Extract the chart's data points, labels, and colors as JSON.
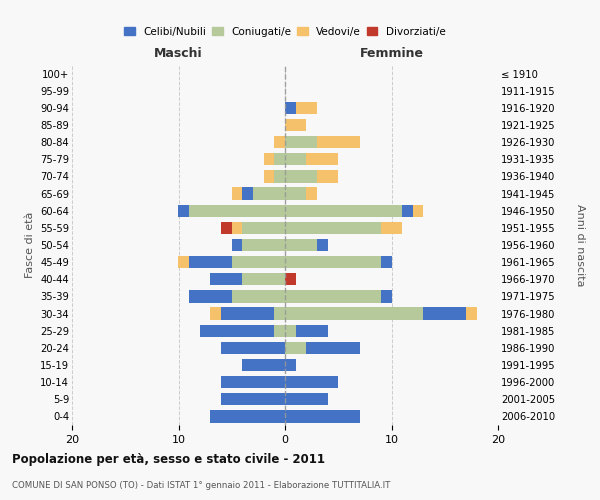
{
  "age_groups": [
    "0-4",
    "5-9",
    "10-14",
    "15-19",
    "20-24",
    "25-29",
    "30-34",
    "35-39",
    "40-44",
    "45-49",
    "50-54",
    "55-59",
    "60-64",
    "65-69",
    "70-74",
    "75-79",
    "80-84",
    "85-89",
    "90-94",
    "95-99",
    "100+"
  ],
  "birth_years": [
    "2006-2010",
    "2001-2005",
    "1996-2000",
    "1991-1995",
    "1986-1990",
    "1981-1985",
    "1976-1980",
    "1971-1975",
    "1966-1970",
    "1961-1965",
    "1956-1960",
    "1951-1955",
    "1946-1950",
    "1941-1945",
    "1936-1940",
    "1931-1935",
    "1926-1930",
    "1921-1925",
    "1916-1920",
    "1911-1915",
    "≤ 1910"
  ],
  "maschi": {
    "celibi": [
      7,
      6,
      6,
      4,
      6,
      7,
      5,
      4,
      3,
      4,
      1,
      0,
      1,
      1,
      0,
      0,
      0,
      0,
      0,
      0,
      0
    ],
    "coniugati": [
      0,
      0,
      0,
      0,
      0,
      1,
      1,
      5,
      4,
      5,
      4,
      4,
      9,
      3,
      1,
      1,
      0,
      0,
      0,
      0,
      0
    ],
    "vedovi": [
      0,
      0,
      0,
      0,
      0,
      0,
      1,
      0,
      0,
      1,
      0,
      1,
      0,
      1,
      1,
      1,
      1,
      0,
      0,
      0,
      0
    ],
    "divorziati": [
      0,
      0,
      0,
      0,
      0,
      0,
      0,
      0,
      0,
      0,
      0,
      1,
      0,
      0,
      0,
      0,
      0,
      0,
      0,
      0,
      0
    ]
  },
  "femmine": {
    "nubili": [
      7,
      4,
      5,
      1,
      5,
      3,
      4,
      1,
      0,
      1,
      1,
      0,
      1,
      0,
      0,
      0,
      0,
      0,
      1,
      0,
      0
    ],
    "coniugate": [
      0,
      0,
      0,
      0,
      2,
      1,
      13,
      9,
      0,
      9,
      3,
      9,
      11,
      2,
      3,
      2,
      3,
      0,
      0,
      0,
      0
    ],
    "vedove": [
      0,
      0,
      0,
      0,
      0,
      0,
      1,
      0,
      0,
      0,
      0,
      2,
      1,
      1,
      2,
      3,
      4,
      2,
      2,
      0,
      0
    ],
    "divorziate": [
      0,
      0,
      0,
      0,
      0,
      0,
      0,
      0,
      1,
      0,
      0,
      0,
      0,
      0,
      0,
      0,
      0,
      0,
      0,
      0,
      0
    ]
  },
  "color_celibi": "#4472c4",
  "color_coniugati": "#b5c99a",
  "color_vedovi": "#f5c26b",
  "color_divorziati": "#c0392b",
  "xlim": 20,
  "title": "Popolazione per età, sesso e stato civile - 2011",
  "subtitle": "COMUNE DI SAN PONSO (TO) - Dati ISTAT 1° gennaio 2011 - Elaborazione TUTTITALIA.IT",
  "ylabel_left": "Fasce di età",
  "ylabel_right": "Anni di nascita",
  "xlabel_left": "Maschi",
  "xlabel_right": "Femmine",
  "background": "#f8f8f8"
}
